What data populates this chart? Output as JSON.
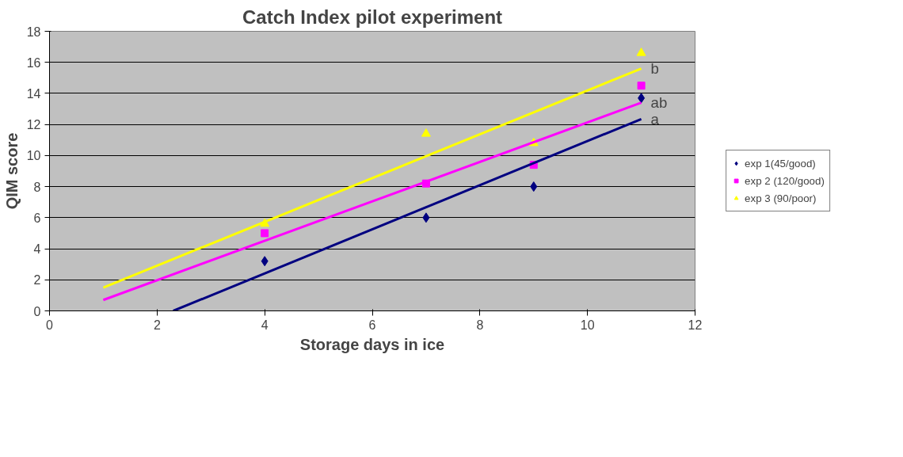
{
  "chart_data": {
    "type": "scatter",
    "title": "Catch Index pilot experiment",
    "xlabel": "Storage days in ice",
    "ylabel": "QIM score",
    "x": [
      4,
      7,
      9,
      11
    ],
    "series": [
      {
        "name": "exp 1(45/good)",
        "color": "#000080",
        "marker": "diamond",
        "values": [
          3.2,
          6.0,
          8.0,
          13.7
        ]
      },
      {
        "name": "exp 2 (120/good)",
        "color": "#ff00ff",
        "marker": "square",
        "values": [
          5.0,
          8.2,
          9.4,
          14.5
        ]
      },
      {
        "name": "exp 3 (90/poor)",
        "color": "#ffff00",
        "marker": "triangle",
        "values": [
          5.6,
          11.4,
          10.8,
          16.6
        ]
      },
      {
        "type": "line",
        "color": "#000080",
        "x": [
          2.3,
          11
        ],
        "values": [
          0,
          12.35
        ]
      },
      {
        "type": "line",
        "color": "#ff00ff",
        "x": [
          1,
          11
        ],
        "values": [
          0.7,
          13.4
        ]
      },
      {
        "type": "line",
        "color": "#ffff00",
        "x": [
          1,
          11
        ],
        "values": [
          1.5,
          15.6
        ]
      }
    ],
    "annotations": [
      "a",
      "ab",
      "b"
    ],
    "xlim": [
      0,
      12
    ],
    "xticks": [
      0,
      2,
      4,
      6,
      8,
      10,
      12
    ],
    "ylim": [
      0,
      18
    ],
    "yticks": [
      0,
      2,
      4,
      6,
      8,
      10,
      12,
      14,
      16,
      18
    ],
    "grid": "y",
    "legend": "right"
  }
}
